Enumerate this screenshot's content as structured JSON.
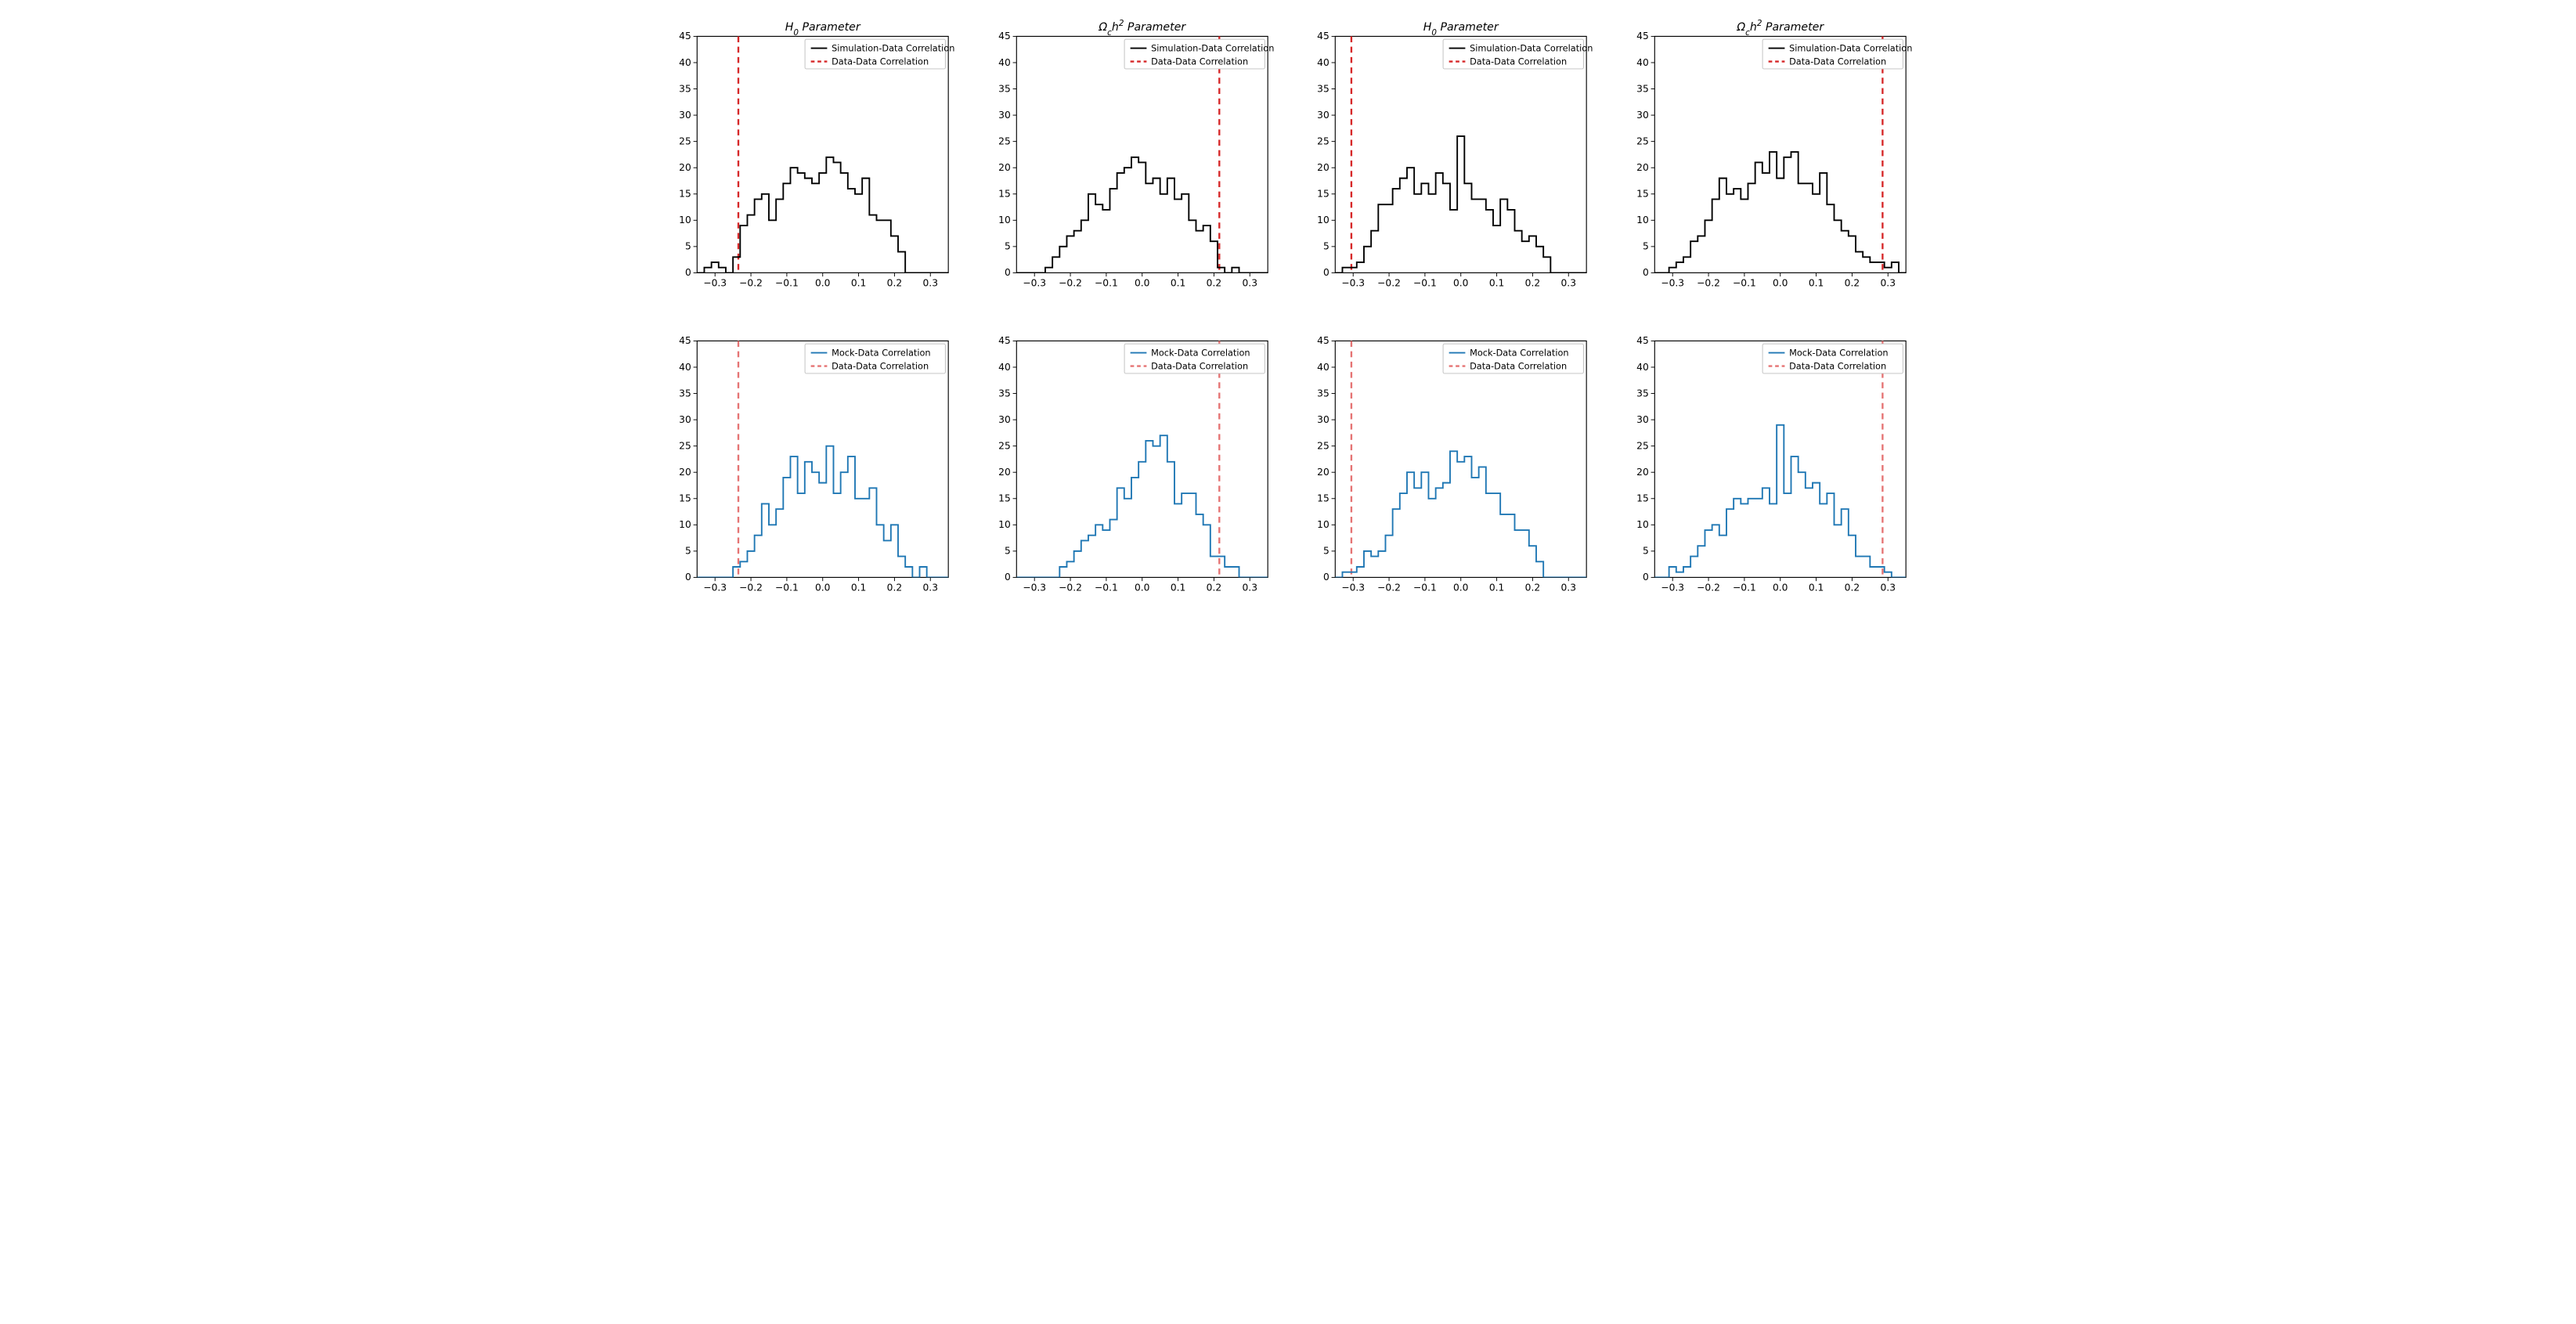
{
  "global": {
    "background_color": "#ffffff",
    "axis_color": "#000000",
    "tick_fontsize": 13,
    "title_fontsize": 15,
    "legend_fontsize": 12,
    "font_family": "DejaVu Sans, Arial, sans-serif"
  },
  "titles": {
    "h0": "H₀ Parameter",
    "omega": "Ω_c h² Parameter"
  },
  "legend": {
    "sim": "Simulation-Data Correlation",
    "mock": "Mock-Data Correlation",
    "data": "Data-Data Correlation"
  },
  "axes": {
    "xlim": [
      -0.35,
      0.35
    ],
    "ylim": [
      0,
      45
    ],
    "xticks": [
      -0.3,
      -0.2,
      -0.1,
      0.0,
      0.1,
      0.2,
      0.3
    ],
    "xtick_labels": [
      "−0.3",
      "−0.2",
      "−0.1",
      "0.0",
      "0.1",
      "0.2",
      "0.3"
    ],
    "yticks": [
      0,
      5,
      10,
      15,
      20,
      25,
      30,
      35,
      40,
      45
    ],
    "n_bins": 35,
    "bin_start": -0.35,
    "bin_width": 0.02
  },
  "colors": {
    "sim_line": "#000000",
    "mock_line": "#1f77b4",
    "vline": "#d62728",
    "vline_light": "#e57373",
    "legend_border": "#bfbfbf",
    "tick_color": "#000000"
  },
  "line_style": {
    "hist_width": 2.0,
    "vline_width": 2.5,
    "vline_dash": "8 6"
  },
  "panels": [
    {
      "id": "p0",
      "row": 0,
      "col": 0,
      "title_key": "h0",
      "series_color_key": "sim_line",
      "series_legend_key": "sim",
      "vline_x": -0.235,
      "vline_color_key": "vline",
      "counts": [
        0,
        1,
        2,
        1,
        0,
        3,
        9,
        11,
        14,
        15,
        10,
        14,
        17,
        20,
        19,
        18,
        17,
        19,
        22,
        21,
        19,
        16,
        15,
        18,
        11,
        10,
        10,
        7,
        4,
        0,
        0,
        0,
        0,
        0,
        0
      ]
    },
    {
      "id": "p1",
      "row": 0,
      "col": 1,
      "title_key": "omega",
      "series_color_key": "sim_line",
      "series_legend_key": "sim",
      "vline_x": 0.215,
      "vline_color_key": "vline",
      "counts": [
        0,
        0,
        0,
        0,
        1,
        3,
        5,
        7,
        8,
        10,
        15,
        13,
        12,
        16,
        19,
        20,
        22,
        21,
        17,
        18,
        15,
        18,
        14,
        15,
        10,
        8,
        9,
        6,
        1,
        0,
        1,
        0,
        0,
        0,
        0
      ]
    },
    {
      "id": "p2",
      "row": 0,
      "col": 2,
      "title_key": "h0",
      "series_color_key": "sim_line",
      "series_legend_key": "sim",
      "vline_x": -0.305,
      "vline_color_key": "vline",
      "counts": [
        0,
        1,
        1,
        2,
        5,
        8,
        13,
        13,
        16,
        18,
        20,
        15,
        17,
        15,
        19,
        17,
        12,
        26,
        17,
        14,
        14,
        12,
        9,
        14,
        12,
        8,
        6,
        7,
        5,
        3,
        0,
        0,
        0,
        0,
        0
      ]
    },
    {
      "id": "p3",
      "row": 0,
      "col": 3,
      "title_key": "omega",
      "series_color_key": "sim_line",
      "series_legend_key": "sim",
      "vline_x": 0.285,
      "vline_color_key": "vline",
      "counts": [
        0,
        0,
        1,
        2,
        3,
        6,
        7,
        10,
        14,
        18,
        15,
        16,
        14,
        17,
        21,
        19,
        23,
        18,
        22,
        23,
        17,
        17,
        15,
        19,
        13,
        10,
        8,
        7,
        4,
        3,
        2,
        2,
        1,
        2,
        0
      ]
    },
    {
      "id": "p4",
      "row": 1,
      "col": 0,
      "title_key": null,
      "series_color_key": "mock_line",
      "series_legend_key": "mock",
      "vline_x": -0.235,
      "vline_color_key": "vline_light",
      "counts": [
        0,
        0,
        0,
        0,
        0,
        2,
        3,
        5,
        8,
        14,
        10,
        13,
        19,
        23,
        16,
        22,
        20,
        18,
        25,
        16,
        20,
        23,
        15,
        15,
        17,
        10,
        7,
        10,
        4,
        2,
        0,
        2,
        0,
        0,
        0
      ]
    },
    {
      "id": "p5",
      "row": 1,
      "col": 1,
      "title_key": null,
      "series_color_key": "mock_line",
      "series_legend_key": "mock",
      "vline_x": 0.215,
      "vline_color_key": "vline_light",
      "counts": [
        0,
        0,
        0,
        0,
        0,
        0,
        2,
        3,
        5,
        7,
        8,
        10,
        9,
        11,
        17,
        15,
        19,
        22,
        26,
        25,
        27,
        22,
        14,
        16,
        16,
        12,
        10,
        4,
        4,
        2,
        2,
        0,
        0,
        0,
        0
      ]
    },
    {
      "id": "p6",
      "row": 1,
      "col": 2,
      "title_key": null,
      "series_color_key": "mock_line",
      "series_legend_key": "mock",
      "vline_x": -0.305,
      "vline_color_key": "vline_light",
      "counts": [
        0,
        1,
        1,
        2,
        5,
        4,
        5,
        8,
        13,
        16,
        20,
        17,
        20,
        15,
        17,
        18,
        24,
        22,
        23,
        19,
        21,
        16,
        16,
        12,
        12,
        9,
        9,
        6,
        3,
        0,
        0,
        0,
        0,
        0,
        0
      ]
    },
    {
      "id": "p7",
      "row": 1,
      "col": 3,
      "title_key": null,
      "series_color_key": "mock_line",
      "series_legend_key": "mock",
      "vline_x": 0.285,
      "vline_color_key": "vline_light",
      "counts": [
        0,
        0,
        2,
        1,
        2,
        4,
        6,
        9,
        10,
        8,
        13,
        15,
        14,
        15,
        15,
        17,
        14,
        29,
        16,
        23,
        20,
        17,
        18,
        14,
        16,
        10,
        13,
        8,
        4,
        4,
        2,
        2,
        1,
        0,
        0
      ]
    }
  ]
}
